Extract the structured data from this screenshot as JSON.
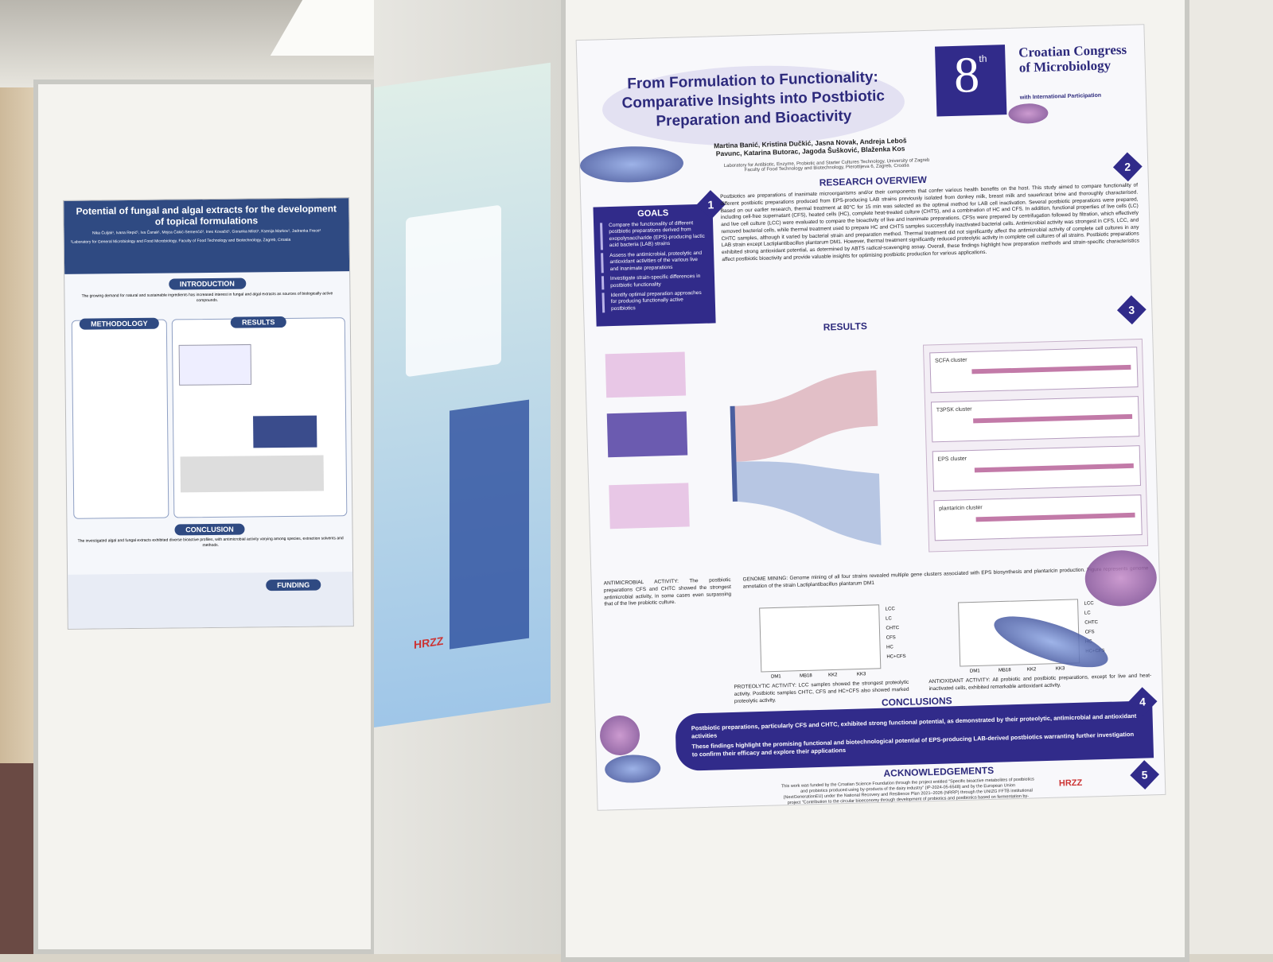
{
  "left_poster": {
    "title": "Potential of fungal and algal extracts for the development of topical formulations",
    "authors": "Nika Čuljak¹, Ivana Repić¹, Iva Čanak¹, Mojca Čakić-Semenčić², Ines Kovačić¹, Goranka Miloti¹, Ksenija Markov¹, Jadranka Frece¹",
    "affiliation": "¹Laboratory for General Microbiology and Food Microbiology, Faculty of Food Technology and Biotechnology, Zagreb, Croatia",
    "sections": [
      "INTRODUCTION",
      "METHODOLOGY",
      "RESULTS",
      "CONCLUSION",
      "FUNDING"
    ],
    "intro": "The growing demand for natural and sustainable ingredients has increased interest in fungal and algal extracts as sources of biologically active compounds.",
    "conclusion": "The investigated algal and fungal extracts exhibited diverse bioactive profiles, with antimicrobial activity varying among species, extraction solvents and methods."
  },
  "middle_poster": {
    "logo": "HRZZ"
  },
  "right_poster": {
    "title": "From Formulation to Functionality: Comparative Insights into Postbiotic Preparation and Bioactivity",
    "authors": "Martina Banić, Kristina Dučkić, Jasna Novak, Andreja Leboš Pavunc, Katarina Butorac, Jagoda Šušković, Blaženka Kos",
    "affiliation": "Laboratory for Antibiotic, Enzyme, Probiotic and Starter Cultures Technology, University of Zagreb Faculty of Food Technology and Biotechnology, Pierottijeva 6, Zagreb, Croatia",
    "congress": {
      "number": "8",
      "suffix": "th",
      "name": "Croatian Congress of Microbiology",
      "subtitle": "with International Participation"
    },
    "goals": {
      "heading": "GOALS",
      "number": "1",
      "items": [
        "Compare the functionality of different postbiotic preparations derived from exopolysaccharide (EPS)-producing lactic acid bacteria (LAB) strains",
        "Assess the antimicrobial, proteolytic and antioxidant activities of the various live and inanimate preparations",
        "Investigate strain-specific differences in postbiotic functionality",
        "Identify optimal preparation approaches for producing functionally active postbiotics"
      ]
    },
    "overview": {
      "heading": "RESEARCH OVERVIEW",
      "number": "2",
      "text": "Postbiotics are preparations of inanimate microorganisms and/or their components that confer various health benefits on the host. This study aimed to compare functionality of different postbiotic preparations produced from EPS-producing LAB strains previously isolated from donkey milk, breast milk and sauerkraut brine and thoroughly characterised. Based on our earlier research, thermal treatment at 80°C for 15 min was selected as the optimal method for LAB cell inactivation. Several postbiotic preparations were prepared, including cell-free supernatant (CFS), heated cells (HC), complete heat-treated culture (CHTS), and a combination of HC and CFS. In addition, functional properties of live cells (LC) and live cell culture (LCC) were evaluated to compare the bioactivity of live and inanimate preparations. CFSs were prepared by centrifugation followed by filtration, which effectively removed bacterial cells, while thermal treatment used to prepare HC and CHTS samples successfully inactivated bacterial cells. Antimicrobial activity was strongest in CFS, LCC, and CHTC samples, although it varied by bacterial strain and preparation method. Thermal treatment did not significantly affect the antimicrobial activity of complete cell cultures in any LAB strain except Lactiplantibacillus plantarum DM1. However, thermal treatment significantly reduced proteolytic activity in complete cell cultures of all strains. Postbiotic preparations exhibited strong antioxidant potential, as determined by ABTS radical-scavenging assay. Overall, these findings highlight how preparation methods and strain-specific characteristics affect postbiotic bioactivity and provide valuable insights for optimising postbiotic production for various applications."
    },
    "results": {
      "heading": "RESULTS",
      "number": "3",
      "antimicrobial": "ANTIMICROBIAL ACTIVITY: The postbiotic preparations CFS and CHTC showed the strongest antimicrobial activity, in some cases even surpassing that of the live probiotic culture.",
      "genome": "GENOME MINING: Genome mining of all four strains revealed multiple gene clusters associated with EPS biosynthesis and plantaricin production. Figure represents genome annotation of the strain Lactiplantibacillus plantarum DM1",
      "proteolytic": "PROTEOLYTIC ACTIVITY: LCC samples showed the strongest proteolytic activity. Postbiotic samples CHTC, CFS and HC+CFS also showed marked proteolytic activity.",
      "antioxidant": "ANTIOXIDANT ACTIVITY: All probiotic and postbiotic preparations, except for live and heat-inactivated cells, exhibited remarkable antioxidant activity.",
      "clusters": [
        "SCFA cluster",
        "T3PSK cluster",
        "EPS cluster",
        "plantaricin cluster"
      ],
      "strains": [
        "DM1",
        "MB18",
        "KK2",
        "KK3"
      ],
      "legend": [
        "LCC",
        "LC",
        "CHTC",
        "CFS",
        "HC",
        "HC+CFS"
      ]
    },
    "conclusions": {
      "heading": "CONCLUSIONS",
      "number": "4",
      "items": [
        "Postbiotic preparations, particularly CFS and CHTC, exhibited strong functional potential, as demonstrated by their proteolytic, antimicrobial and antioxidant activities",
        "These findings highlight the promising functional and biotechnological potential of EPS-producing LAB-derived postbiotics warranting further investigation to confirm their efficacy and explore their applications"
      ]
    },
    "acknowledgements": {
      "heading": "ACKNOWLEDGEMENTS",
      "number": "5",
      "text": "This work was funded by the Croatian Science Foundation through the project entitled \"Specific bioactive metabolites of postbiotics and probiotics produced using by-products of the dairy industry\" (IP-2024-05-6548) and by the European Union (NextGenerationEU) under the National Recovery and Resilience Plan 2021–2026 (NRRP) through the UNIZG FFTB institutional project \"Contribution to the circular bioeconomy through development of probiotics and postbiotics based on fermentation by-products (PRO-ECO-FERMENT)\", approved by the Ministry of Science, Education and Youth of the Republic of Croatia.",
      "logo": "HRZZ"
    }
  }
}
